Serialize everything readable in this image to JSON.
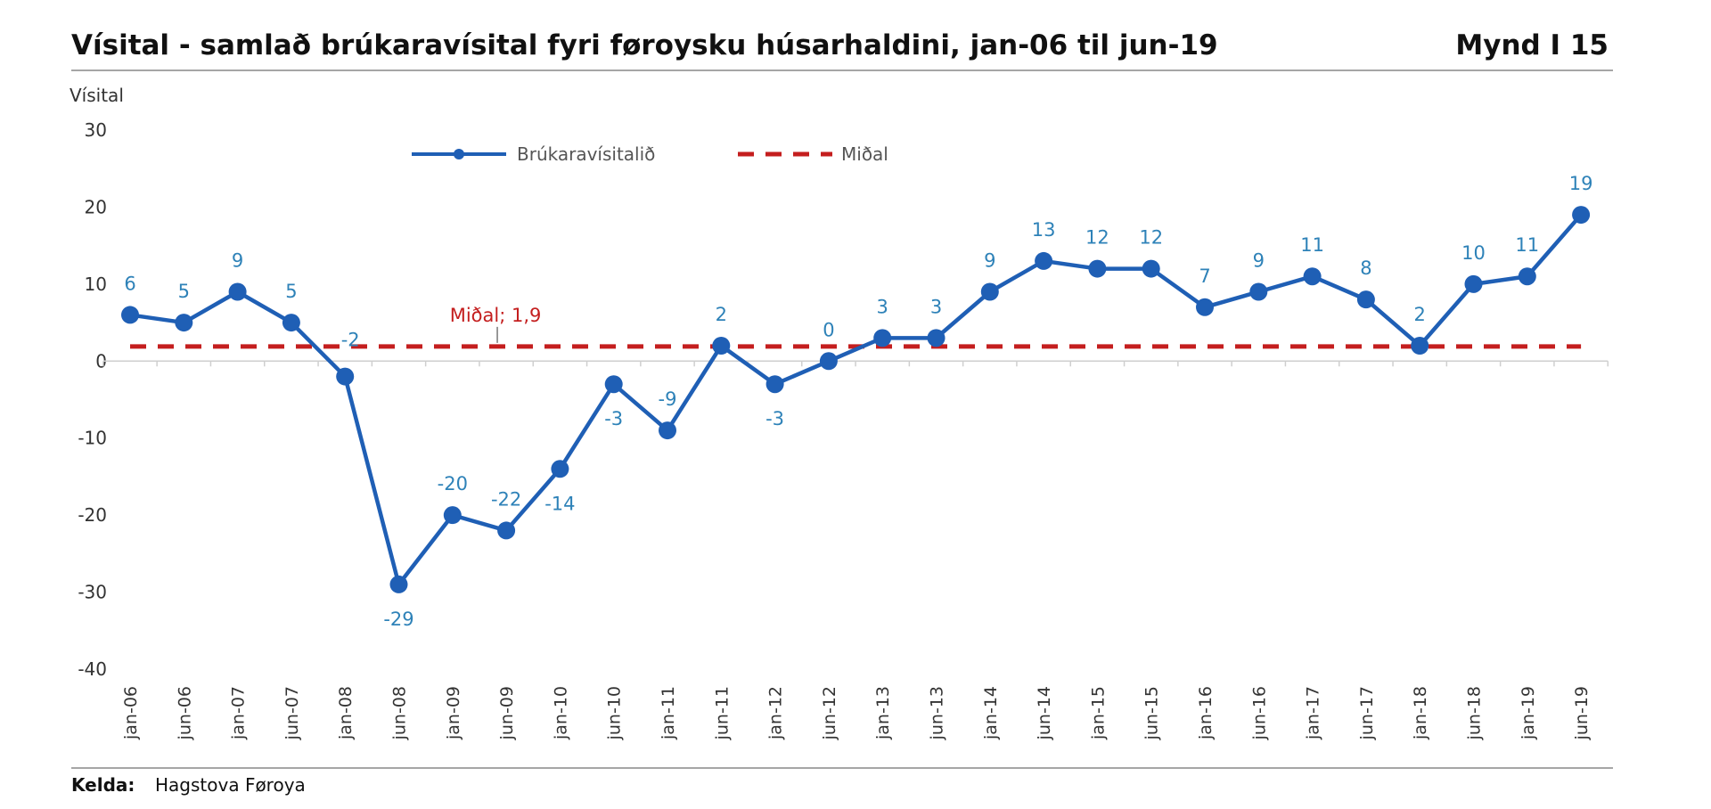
{
  "header": {
    "title": "Vísital - samlað brúkaravísital fyri føroysku húsarhaldini, jan-06 til jun-19",
    "figure_number": "Mynd I 15"
  },
  "footer": {
    "source_label": "Kelda:",
    "source_value": "Hagstova Føroya"
  },
  "chart_data": {
    "type": "line",
    "ylabel": "Vísital",
    "ylim": [
      -40,
      30
    ],
    "yticks": [
      30,
      20,
      10,
      0,
      -10,
      -20,
      -30,
      -40
    ],
    "categories": [
      "jan-06",
      "jun-06",
      "jan-07",
      "jun-07",
      "jan-08",
      "jun-08",
      "jan-09",
      "jun-09",
      "jan-10",
      "jun-10",
      "jan-11",
      "jun-11",
      "jan-12",
      "jun-12",
      "jan-13",
      "jun-13",
      "jan-14",
      "jun-14",
      "jan-15",
      "jun-15",
      "jan-16",
      "jun-16",
      "jan-17",
      "jun-17",
      "jan-18",
      "jun-18",
      "jan-19",
      "jun-19"
    ],
    "series": [
      {
        "name": "Brúkaravísitalið",
        "color": "#1f5fb5",
        "values": [
          6,
          5,
          9,
          5,
          -2,
          -29,
          -20,
          -22,
          -14,
          -3,
          -9,
          2,
          -3,
          0,
          3,
          3,
          9,
          13,
          12,
          12,
          7,
          9,
          11,
          8,
          2,
          10,
          11,
          19
        ]
      }
    ],
    "mean": {
      "name": "Miðal",
      "value": 1.9,
      "label": "Miðal; 1,9",
      "color": "#c41e1e"
    },
    "legend_position": "top-center",
    "grid": false
  }
}
